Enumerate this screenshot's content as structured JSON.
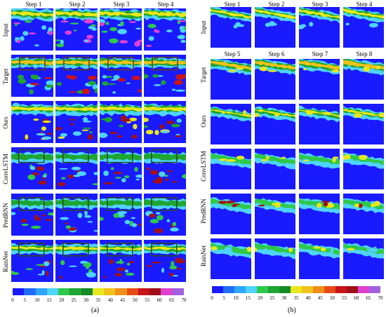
{
  "panel_a": {
    "tag": "(a)",
    "steps": [
      "Step 1",
      "Step 2",
      "Step 3",
      "Step 4"
    ],
    "rows": [
      "Input",
      "Target",
      "Ours",
      "ConvLSTM",
      "PredRNN",
      "RainNet"
    ]
  },
  "panel_b": {
    "tag": "(b)",
    "steps_top": [
      "Step 1",
      "Step 2",
      "Step 3",
      "Step 4"
    ],
    "steps_bottom": [
      "Step 5",
      "Step 6",
      "Step 7",
      "Step 8"
    ],
    "rows": [
      "Input",
      "Target",
      "Ours",
      "ConvLSTM",
      "PredRNN",
      "RainNet"
    ]
  },
  "colorbar": {
    "ticks": [
      "0",
      "5",
      "10",
      "15",
      "20",
      "25",
      "30",
      "35",
      "40",
      "45",
      "50",
      "55",
      "60",
      "65",
      "70"
    ],
    "colors": [
      "#1a1aff",
      "#1f6dff",
      "#2fa6ff",
      "#4fd3ff",
      "#2ec84a",
      "#1ea532",
      "#138a24",
      "#e8e81c",
      "#f0c21a",
      "#f09018",
      "#e84a14",
      "#c8141a",
      "#a01018",
      "#e040d0",
      "#a060e0"
    ]
  }
}
